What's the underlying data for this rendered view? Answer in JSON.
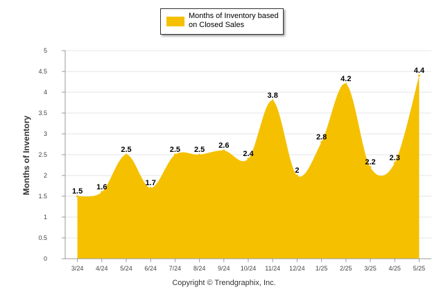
{
  "chart_data": {
    "type": "area",
    "title": "",
    "xlabel": "",
    "ylabel": "Months of Inventory",
    "ylim": [
      0,
      5
    ],
    "yticks": [
      "0",
      "0.5",
      "1",
      "1.5",
      "2",
      "2.5",
      "3",
      "3.5",
      "4",
      "4.5",
      "5"
    ],
    "categories": [
      "3/24",
      "4/24",
      "5/24",
      "6/24",
      "7/24",
      "8/24",
      "9/24",
      "10/24",
      "11/24",
      "12/24",
      "1/25",
      "2/25",
      "3/25",
      "4/25",
      "5/25"
    ],
    "series": [
      {
        "name": "Months of Inventory based on Closed Sales",
        "color": "#f5c000",
        "values": [
          1.5,
          1.6,
          2.5,
          1.7,
          2.5,
          2.5,
          2.6,
          2.4,
          3.8,
          2,
          2.8,
          4.2,
          2.2,
          2.3,
          4.4
        ],
        "data_labels": [
          "1.5",
          "1.6",
          "2.5",
          "1.7",
          "2.5",
          "2.5",
          "2.6",
          "2.4",
          "3.8",
          "2",
          "2.8",
          "4.2",
          "2.2",
          "2.3",
          "4.4"
        ]
      }
    ],
    "grid": true,
    "legend_position": "top-center"
  },
  "legend": {
    "label": "Months of Inventory based on Closed Sales"
  },
  "footer": {
    "copyright": "Copyright © Trendgraphix, Inc."
  }
}
